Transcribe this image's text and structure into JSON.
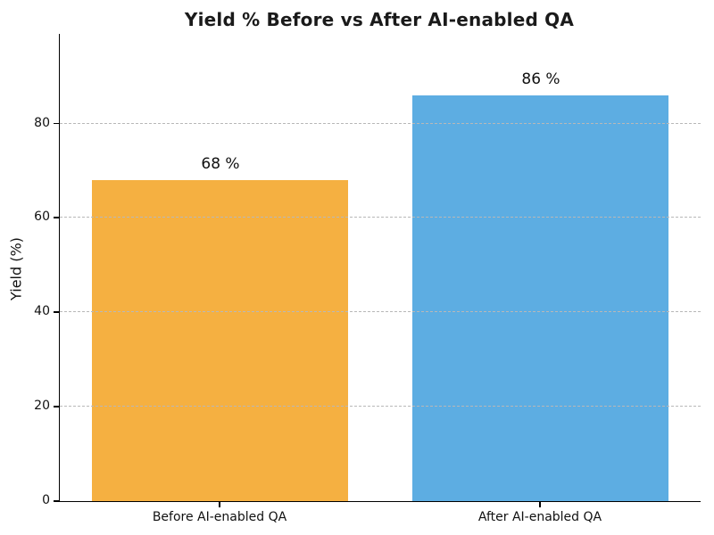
{
  "chart_data": {
    "type": "bar",
    "title": "Yield % Before vs After AI-enabled QA",
    "xlabel": "",
    "ylabel": "Yield (%)",
    "categories": [
      "Before AI-enabled QA",
      "After AI-enabled QA"
    ],
    "values": [
      68,
      86
    ],
    "value_labels": [
      "68 %",
      "86 %"
    ],
    "bar_colors": [
      "#F5B041",
      "#5DADE2"
    ],
    "ylim": [
      0,
      99
    ],
    "yticks": [
      0,
      20,
      40,
      60,
      80
    ],
    "grid": "horizontal-dashed",
    "grid_color": "#b8b8b8",
    "legend": "none",
    "spines": [
      "left",
      "bottom"
    ]
  }
}
